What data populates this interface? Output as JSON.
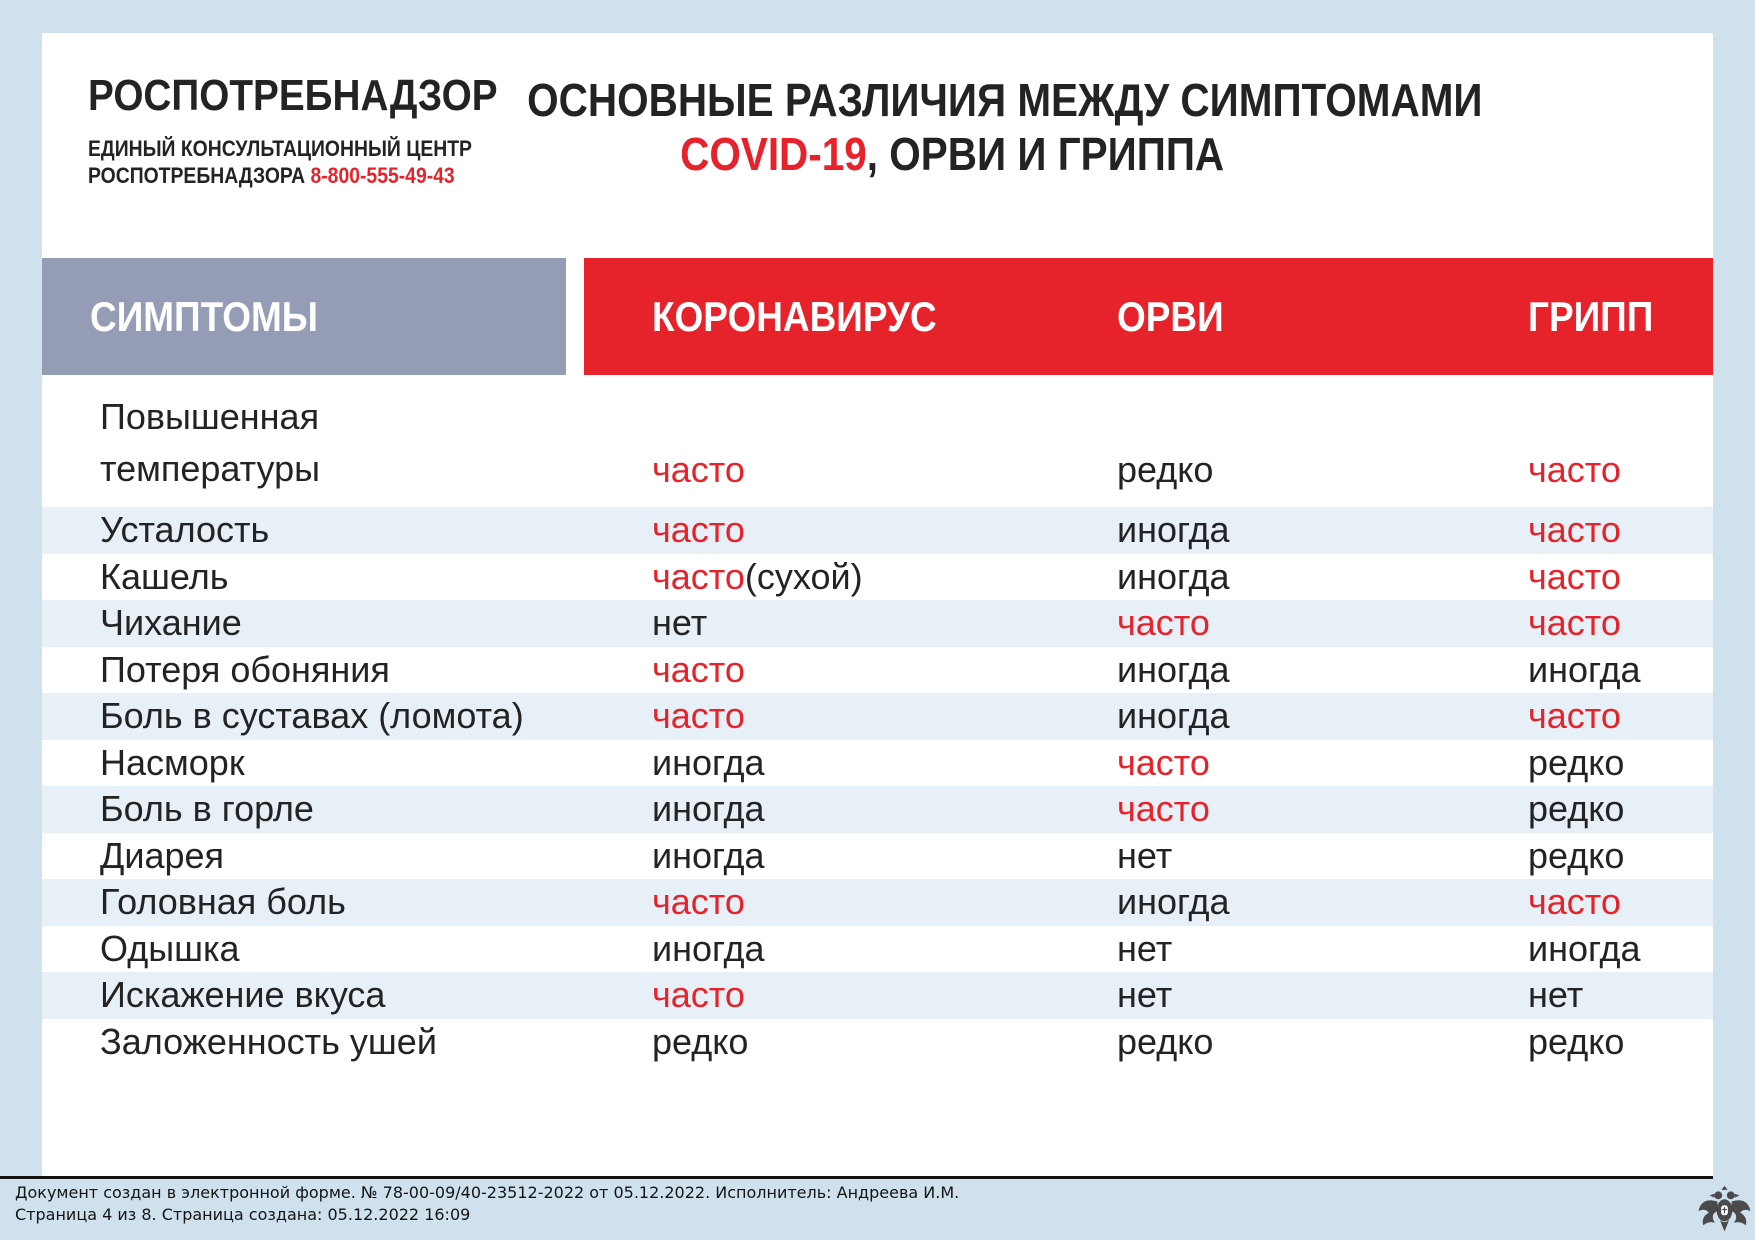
{
  "colors": {
    "page_background": "#d0e1ee",
    "card_background": "#ffffff",
    "accent_red": "#e6232a",
    "header_gray": "#959cb6",
    "zebra_row": "#e7f0f7",
    "text": "#232323"
  },
  "logo": {
    "name": "РОСПОТРЕБНАДЗОР",
    "subtitle_line1": "ЕДИНЫЙ КОНСУЛЬТАЦИОННЫЙ ЦЕНТР",
    "subtitle_line2": "РОСПОТРЕБНАДЗОРА ",
    "phone": "8-800-555-49-43"
  },
  "title": {
    "line1": "ОСНОВНЫЕ РАЗЛИЧИЯ МЕЖДУ СИМПТОМАМИ",
    "line2_red": "COVID-19",
    "line2_rest": ", ОРВИ И ГРИППА"
  },
  "table": {
    "headers": {
      "symptoms": "СИМПТОМЫ",
      "coronavirus": "КОРОНАВИРУС",
      "orvi": "ОРВИ",
      "gripp": "ГРИПП"
    },
    "rows": [
      {
        "symptom": [
          "Повышенная",
          "температуры"
        ],
        "tall": true,
        "zebra": false,
        "cells": [
          {
            "t": "часто",
            "red": true
          },
          {
            "t": "редко",
            "red": false
          },
          {
            "t": "часто",
            "red": true
          }
        ]
      },
      {
        "symptom": [
          "Усталость"
        ],
        "tall": false,
        "zebra": true,
        "cells": [
          {
            "t": "часто",
            "red": true
          },
          {
            "t": "иногда",
            "red": false
          },
          {
            "t": "часто",
            "red": true
          }
        ]
      },
      {
        "symptom": [
          "Кашель"
        ],
        "tall": false,
        "zebra": false,
        "cells": [
          {
            "t": "часто",
            "red": true,
            "note": "(сухой)"
          },
          {
            "t": "иногда",
            "red": false
          },
          {
            "t": "часто",
            "red": true
          }
        ]
      },
      {
        "symptom": [
          "Чихание"
        ],
        "tall": false,
        "zebra": true,
        "cells": [
          {
            "t": "нет",
            "red": false
          },
          {
            "t": "часто",
            "red": true
          },
          {
            "t": "часто",
            "red": true
          }
        ]
      },
      {
        "symptom": [
          "Потеря обоняния"
        ],
        "tall": false,
        "zebra": false,
        "cells": [
          {
            "t": "часто",
            "red": true
          },
          {
            "t": "иногда",
            "red": false
          },
          {
            "t": "иногда",
            "red": false
          }
        ]
      },
      {
        "symptom": [
          "Боль в суставах (ломота)"
        ],
        "tall": false,
        "zebra": true,
        "cells": [
          {
            "t": "часто",
            "red": true
          },
          {
            "t": "иногда",
            "red": false
          },
          {
            "t": "часто",
            "red": true
          }
        ]
      },
      {
        "symptom": [
          "Насморк"
        ],
        "tall": false,
        "zebra": false,
        "cells": [
          {
            "t": "иногда",
            "red": false
          },
          {
            "t": "часто",
            "red": true
          },
          {
            "t": "редко",
            "red": false
          }
        ]
      },
      {
        "symptom": [
          "Боль в горле"
        ],
        "tall": false,
        "zebra": true,
        "cells": [
          {
            "t": "иногда",
            "red": false
          },
          {
            "t": "часто",
            "red": true
          },
          {
            "t": "редко",
            "red": false
          }
        ]
      },
      {
        "symptom": [
          "Диарея"
        ],
        "tall": false,
        "zebra": false,
        "cells": [
          {
            "t": "иногда",
            "red": false
          },
          {
            "t": "нет",
            "red": false
          },
          {
            "t": "редко",
            "red": false
          }
        ]
      },
      {
        "symptom": [
          "Головная боль"
        ],
        "tall": false,
        "zebra": true,
        "cells": [
          {
            "t": "часто",
            "red": true
          },
          {
            "t": "иногда",
            "red": false
          },
          {
            "t": "часто",
            "red": true
          }
        ]
      },
      {
        "symptom": [
          "Одышка"
        ],
        "tall": false,
        "zebra": false,
        "cells": [
          {
            "t": "иногда",
            "red": false
          },
          {
            "t": "нет",
            "red": false
          },
          {
            "t": "иногда",
            "red": false
          }
        ]
      },
      {
        "symptom": [
          "Искажение вкуса"
        ],
        "tall": false,
        "zebra": true,
        "cells": [
          {
            "t": "часто",
            "red": true
          },
          {
            "t": "нет",
            "red": false
          },
          {
            "t": "нет",
            "red": false
          }
        ]
      },
      {
        "symptom": [
          "Заложенность ушей"
        ],
        "tall": false,
        "zebra": false,
        "cells": [
          {
            "t": "редко",
            "red": false
          },
          {
            "t": "редко",
            "red": false
          },
          {
            "t": "редко",
            "red": false
          }
        ]
      }
    ]
  },
  "footer": {
    "line1": "Документ создан в электронной форме. № 78-00-09/40-23512-2022 от 05.12.2022. Исполнитель: Андреева И.М.",
    "line2": "Страница 4 из 8. Страница создана: 05.12.2022 16:09"
  }
}
